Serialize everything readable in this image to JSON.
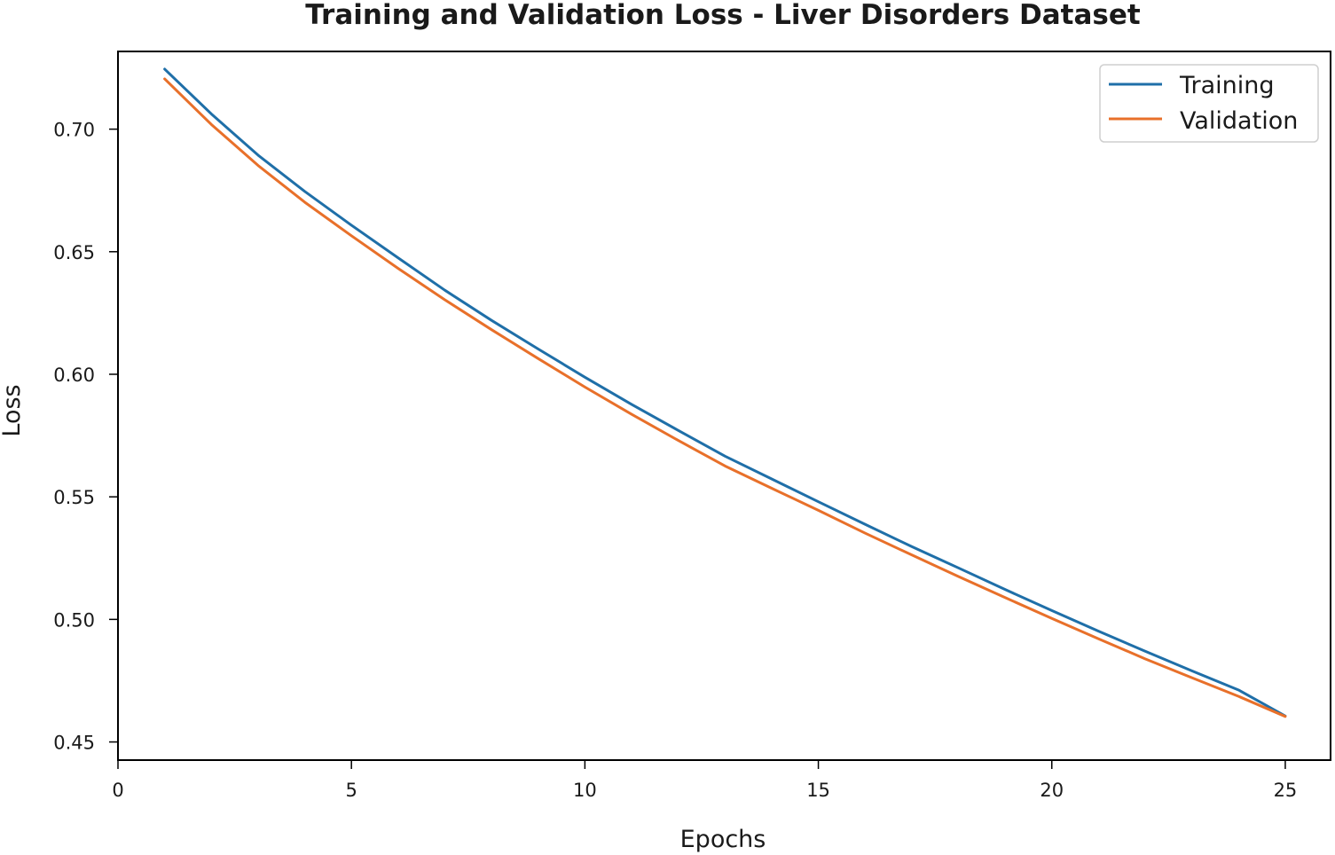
{
  "chart_data": {
    "type": "line",
    "title": "Training and Validation Loss - Liver Disorders Dataset",
    "xlabel": "Epochs",
    "ylabel": "Loss",
    "xlim": [
      0,
      25.97
    ],
    "ylim": [
      0.4426,
      0.7317
    ],
    "xticks": [
      0,
      5,
      10,
      15,
      20,
      25
    ],
    "xtick_labels": [
      "0",
      "5",
      "10",
      "15",
      "20",
      "25"
    ],
    "yticks": [
      0.45,
      0.5,
      0.55,
      0.6,
      0.65,
      0.7
    ],
    "ytick_labels": [
      "0.45",
      "0.50",
      "0.55",
      "0.60",
      "0.65",
      "0.70"
    ],
    "grid": false,
    "legend_position": "top-right",
    "x": [
      1,
      2,
      3,
      4,
      5,
      6,
      7,
      8,
      9,
      10,
      11,
      12,
      13,
      14,
      15,
      16,
      17,
      18,
      19,
      20,
      21,
      22,
      23,
      24,
      25
    ],
    "series": [
      {
        "name": "Training",
        "color": "#1f6fa8",
        "values": [
          0.7245,
          0.7062,
          0.6894,
          0.6746,
          0.6608,
          0.6475,
          0.6343,
          0.622,
          0.6103,
          0.5988,
          0.5877,
          0.5771,
          0.5666,
          0.5573,
          0.548,
          0.5388,
          0.5297,
          0.521,
          0.5122,
          0.5036,
          0.4952,
          0.487,
          0.479,
          0.4712,
          0.4606
        ]
      },
      {
        "name": "Validation",
        "color": "#e8702a",
        "values": [
          0.7205,
          0.7019,
          0.6852,
          0.6702,
          0.6565,
          0.6432,
          0.6304,
          0.6182,
          0.6064,
          0.5948,
          0.5837,
          0.573,
          0.5626,
          0.5535,
          0.5445,
          0.5352,
          0.5263,
          0.5175,
          0.5089,
          0.5004,
          0.4921,
          0.4839,
          0.4762,
          0.4686,
          0.4604
        ]
      }
    ]
  }
}
